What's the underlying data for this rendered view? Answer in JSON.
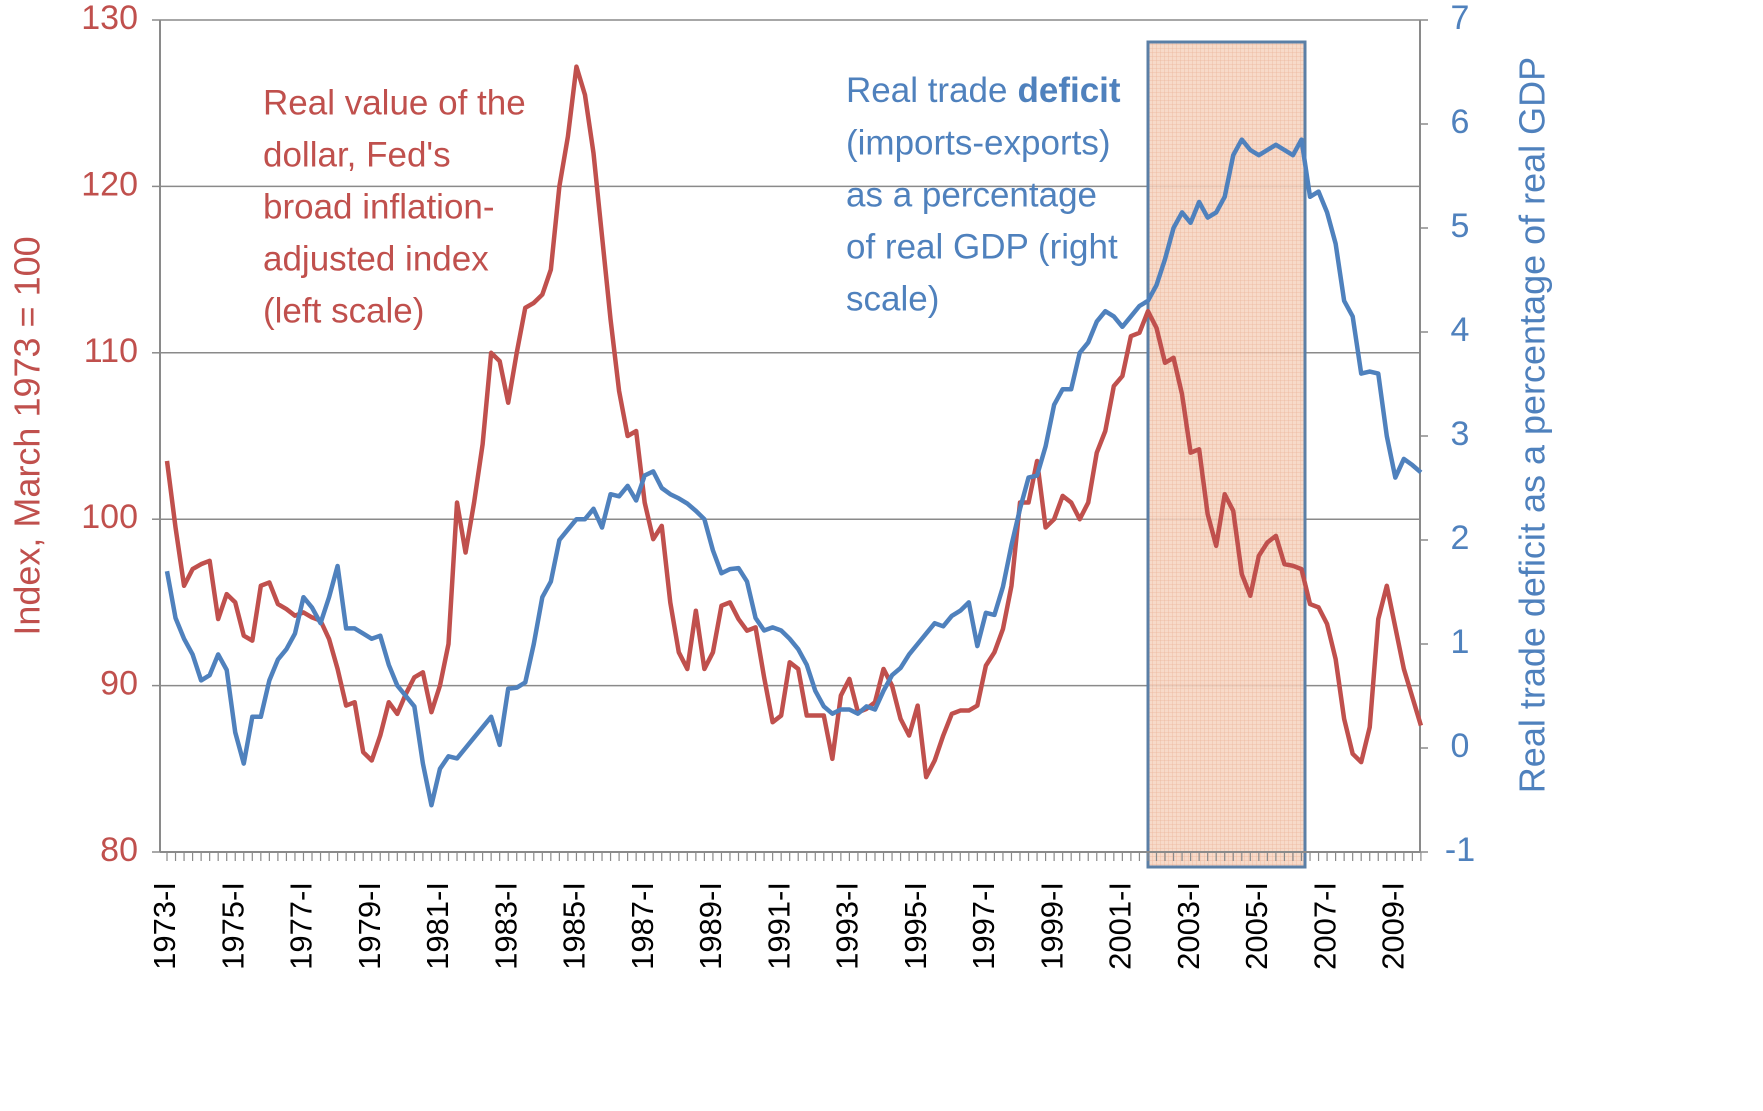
{
  "chart_data": {
    "type": "line",
    "y_label": "Index, March 1973 = 100",
    "y2_label": "Real trade deficit as a percentage of real GDP",
    "categories": [
      "1973-I",
      null,
      null,
      null,
      null,
      null,
      null,
      null,
      "1975-I",
      null,
      null,
      null,
      null,
      null,
      null,
      null,
      "1977-I",
      null,
      null,
      null,
      null,
      null,
      null,
      null,
      "1979-I",
      null,
      null,
      null,
      null,
      null,
      null,
      null,
      "1981-I",
      null,
      null,
      null,
      null,
      null,
      null,
      null,
      "1983-I",
      null,
      null,
      null,
      null,
      null,
      null,
      null,
      "1985-I",
      null,
      null,
      null,
      null,
      null,
      null,
      null,
      "1987-I",
      null,
      null,
      null,
      null,
      null,
      null,
      null,
      "1989-I",
      null,
      null,
      null,
      null,
      null,
      null,
      null,
      "1991-I",
      null,
      null,
      null,
      null,
      null,
      null,
      null,
      "1993-I",
      null,
      null,
      null,
      null,
      null,
      null,
      null,
      "1995-I",
      null,
      null,
      null,
      null,
      null,
      null,
      null,
      "1997-I",
      null,
      null,
      null,
      null,
      null,
      null,
      null,
      "1999-I",
      null,
      null,
      null,
      null,
      null,
      null,
      null,
      "2001-I",
      null,
      null,
      null,
      null,
      null,
      null,
      null,
      "2003-I",
      null,
      null,
      null,
      null,
      null,
      null,
      null,
      "2005-I",
      null,
      null,
      null,
      null,
      null,
      null,
      null,
      "2007-I",
      null,
      null,
      null,
      null,
      null,
      null,
      null,
      "2009-I",
      null,
      null,
      null
    ],
    "series": [
      {
        "color": "#c0504d",
        "axis": "y",
        "values": [
          103.5,
          99.5,
          96,
          97,
          97.3,
          97.5,
          94,
          95.5,
          95,
          93,
          92.7,
          96,
          96.2,
          94.9,
          94.6,
          94.2,
          94.4,
          94.1,
          93.9,
          92.8,
          91,
          88.8,
          89,
          86,
          85.5,
          87,
          89,
          88.3,
          89.5,
          90.5,
          90.8,
          88.4,
          90,
          92.5,
          101,
          98,
          101,
          104.5,
          110,
          109.5,
          107,
          110,
          112.7,
          113,
          113.5,
          115,
          120,
          123,
          127.2,
          125.5,
          122,
          117,
          112,
          107.7,
          105,
          105.3,
          101,
          98.8,
          99.6,
          95,
          92,
          91,
          94.5,
          91,
          92,
          94.8,
          95,
          94,
          93.3,
          93.5,
          90.5,
          87.8,
          88.2,
          91.4,
          91,
          88.2,
          88.2,
          88.2,
          85.6,
          89.4,
          90.4,
          88.4,
          88.6,
          89,
          91,
          90,
          88,
          87,
          88.8,
          84.5,
          85.5,
          87,
          88.3,
          88.5,
          88.5,
          88.8,
          91.2,
          92,
          93.4,
          96,
          101,
          101,
          103.5,
          99.5,
          100,
          101.4,
          101,
          100,
          101,
          104,
          105.3,
          108,
          108.6,
          111,
          111.2,
          112.5,
          111.5,
          109.4,
          109.7,
          107.5,
          104,
          104.2,
          100.3,
          98.4,
          101.5,
          100.5,
          96.7,
          95.4,
          97.8,
          98.6,
          99,
          97.3,
          97.2,
          97,
          94.9,
          94.7,
          93.7,
          91.6,
          88,
          85.9,
          85.4,
          87.5,
          94,
          96,
          93.5,
          91,
          89.3,
          87.6
        ]
      },
      {
        "color": "#4f81bd",
        "axis": "y2",
        "values": [
          1.7,
          1.25,
          1.05,
          0.9,
          0.65,
          0.7,
          0.9,
          0.75,
          0.15,
          -0.15,
          0.3,
          0.3,
          0.65,
          0.85,
          0.95,
          1.1,
          1.45,
          1.35,
          1.2,
          1.45,
          1.75,
          1.15,
          1.15,
          1.1,
          1.05,
          1.08,
          0.8,
          0.6,
          0.5,
          0.4,
          -0.15,
          -0.55,
          -0.2,
          -0.08,
          -0.1,
          0.0,
          0.1,
          0.2,
          0.3,
          0.03,
          0.57,
          0.58,
          0.63,
          1.0,
          1.45,
          1.6,
          2.0,
          2.1,
          2.2,
          2.2,
          2.3,
          2.12,
          2.44,
          2.42,
          2.52,
          2.38,
          2.62,
          2.66,
          2.5,
          2.44,
          2.4,
          2.35,
          2.28,
          2.2,
          1.9,
          1.68,
          1.72,
          1.73,
          1.6,
          1.25,
          1.13,
          1.16,
          1.13,
          1.05,
          0.95,
          0.8,
          0.55,
          0.4,
          0.33,
          0.37,
          0.37,
          0.33,
          0.4,
          0.37,
          0.55,
          0.7,
          0.77,
          0.9,
          1.0,
          1.1,
          1.2,
          1.17,
          1.27,
          1.32,
          1.4,
          0.98,
          1.3,
          1.28,
          1.55,
          1.95,
          2.3,
          2.6,
          2.62,
          2.9,
          3.3,
          3.45,
          3.45,
          3.8,
          3.9,
          4.1,
          4.2,
          4.15,
          4.05,
          4.15,
          4.25,
          4.3,
          4.45,
          4.7,
          5.0,
          5.15,
          5.05,
          5.25,
          5.1,
          5.15,
          5.3,
          5.7,
          5.85,
          5.75,
          5.7,
          5.75,
          5.8,
          5.75,
          5.7,
          5.85,
          5.3,
          5.35,
          5.15,
          4.85,
          4.3,
          4.15,
          3.6,
          3.62,
          3.6,
          3.0,
          2.6,
          2.78,
          2.72,
          2.65
        ]
      }
    ],
    "ylim": [
      80,
      130
    ],
    "yticks": [
      80,
      90,
      100,
      110,
      120,
      130
    ],
    "y2lim": [
      -1,
      7
    ],
    "y2ticks": [
      -1,
      0,
      1,
      2,
      3,
      4,
      5,
      6,
      7
    ],
    "grid": true,
    "annotations": [
      {
        "color": "#c0504d",
        "lines": [
          "Real value of the",
          "dollar, Fed's",
          "broad inflation-",
          "adjusted index",
          "(left scale)"
        ]
      },
      {
        "color": "#4f81bd",
        "lines": [
          [
            {
              "text": "Real trade"
            },
            {
              "text": "deficit",
              "bold": true
            }
          ],
          "(imports-exports)",
          "as a percentage",
          "of real GDP (right",
          "scale)"
        ]
      }
    ]
  }
}
